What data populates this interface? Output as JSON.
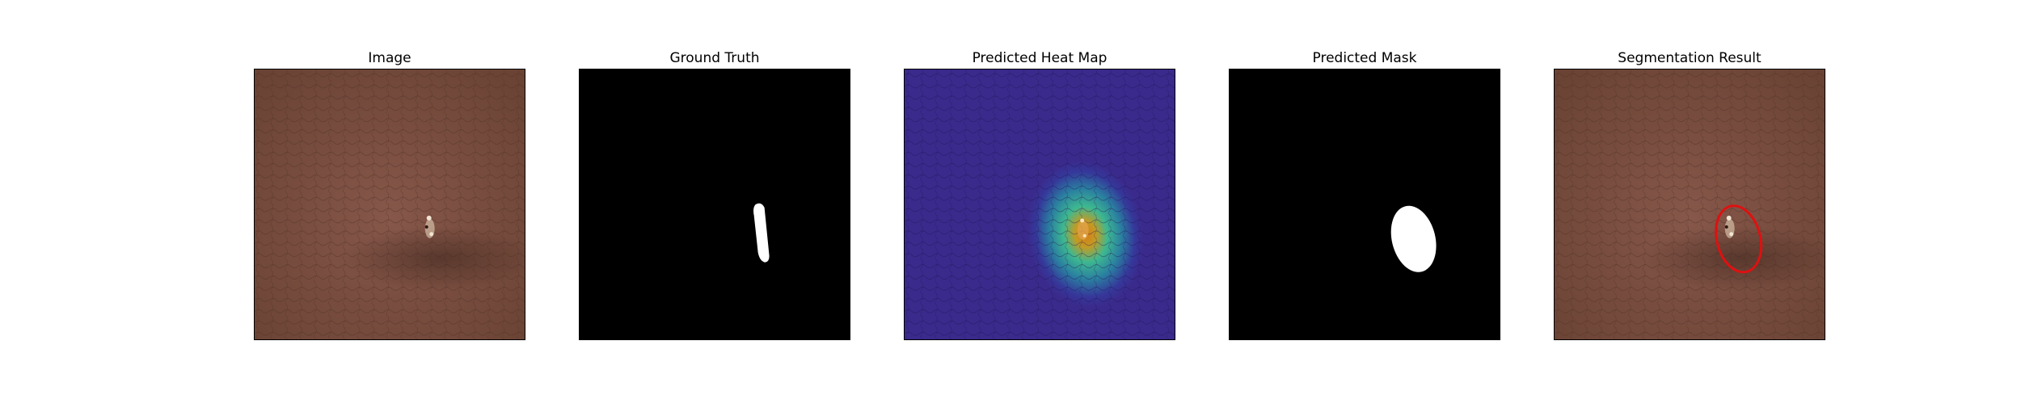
{
  "figure": {
    "panels": [
      {
        "title": "Image"
      },
      {
        "title": "Ground Truth"
      },
      {
        "title": "Predicted Heat Map"
      },
      {
        "title": "Predicted Mask"
      },
      {
        "title": "Segmentation Result"
      }
    ]
  },
  "colors": {
    "leather_base": "#7a4d3c",
    "leather_dark": "#5e3b2e",
    "mask_background": "#000000",
    "mask_foreground": "#ffffff",
    "heatmap_low": "#3a2a8c",
    "heatmap_mid": "#2fb38a",
    "heatmap_high": "#e08a1e",
    "result_outline": "#e01010"
  }
}
